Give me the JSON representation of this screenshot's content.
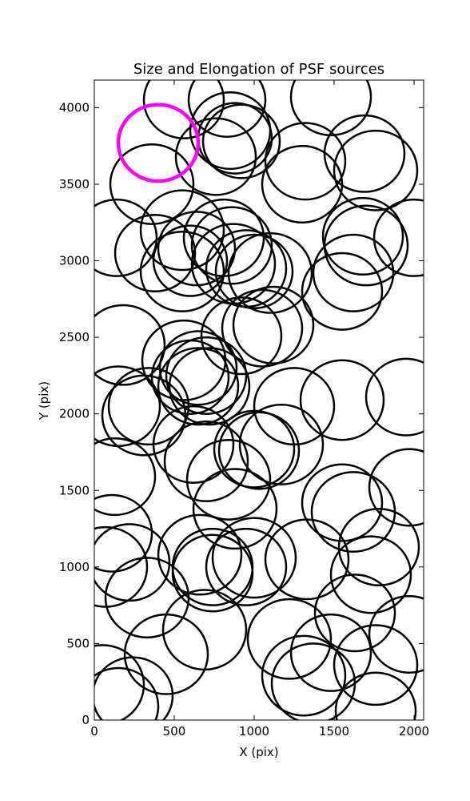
{
  "chart_data": {
    "type": "ellipse-scatter",
    "title": "Size and Elongation of PSF sources",
    "xlabel": "X (pix)",
    "ylabel": "Y (pix)",
    "xlim": [
      0,
      2060
    ],
    "ylim": [
      0,
      4180
    ],
    "xticks": [
      0,
      500,
      1000,
      1500,
      2000
    ],
    "yticks": [
      0,
      500,
      1000,
      1500,
      2000,
      2500,
      3000,
      3500,
      4000
    ],
    "series": [
      {
        "color": "#000000",
        "x": [
          560,
          830,
          850,
          880,
          920,
          760,
          1480,
          1320,
          1690,
          1760,
          1300,
          360,
          140,
          550,
          380,
          640,
          600,
          550,
          810,
          860,
          870,
          950,
          1000,
          1100,
          1680,
          1700,
          1620,
          1550,
          2000,
          1120,
          1050,
          920,
          180,
          560,
          650,
          600,
          700,
          720,
          650,
          150,
          340,
          310,
          1250,
          1550,
          1950,
          620,
          700,
          1000,
          1030,
          1170,
          130,
          840,
          880,
          1550,
          1620,
          1970,
          110,
          220,
          70,
          330,
          660,
          740,
          740,
          950,
          1000,
          1330,
          1780,
          1730,
          1630,
          1970,
          690,
          450,
          1220,
          1480,
          1310,
          1370,
          1760,
          1760,
          50,
          150,
          240
        ],
        "y": [
          4050,
          4050,
          3850,
          3800,
          3780,
          3680,
          4070,
          3650,
          3700,
          3590,
          3500,
          3500,
          3150,
          3200,
          3050,
          3080,
          3000,
          2930,
          3150,
          3100,
          2980,
          2950,
          2930,
          2920,
          3160,
          3100,
          2920,
          2800,
          3150,
          2580,
          2560,
          2510,
          2450,
          2350,
          2300,
          2240,
          2250,
          2180,
          2180,
          2050,
          2050,
          1990,
          2050,
          2090,
          2110,
          1800,
          1690,
          1770,
          1760,
          1800,
          1590,
          1570,
          1380,
          1420,
          1360,
          1520,
          1220,
          1030,
          1000,
          800,
          1080,
          1000,
          960,
          1000,
          1060,
          1050,
          1130,
          950,
          700,
          560,
          590,
          430,
          530,
          440,
          290,
          240,
          360,
          60,
          230,
          90,
          160
        ],
        "sizes": [
          250,
          240,
          250,
          230,
          240,
          250,
          250,
          250,
          250,
          260,
          250,
          260,
          250,
          260,
          250,
          240,
          230,
          260,
          250,
          250,
          260,
          250,
          240,
          260,
          250,
          260,
          250,
          250,
          250,
          250,
          250,
          250,
          260,
          260,
          240,
          240,
          250,
          250,
          250,
          260,
          250,
          260,
          250,
          260,
          250,
          250,
          260,
          250,
          250,
          260,
          250,
          260,
          260,
          250,
          260,
          250,
          250,
          250,
          260,
          260,
          260,
          250,
          250,
          250,
          260,
          260,
          250,
          250,
          250,
          250,
          260,
          260,
          260,
          250,
          260,
          260,
          260,
          250,
          260,
          250,
          250
        ]
      },
      {
        "color": "#ff00ff",
        "x": [
          400
        ],
        "y": [
          3770
        ],
        "sizes": [
          250
        ]
      }
    ]
  }
}
